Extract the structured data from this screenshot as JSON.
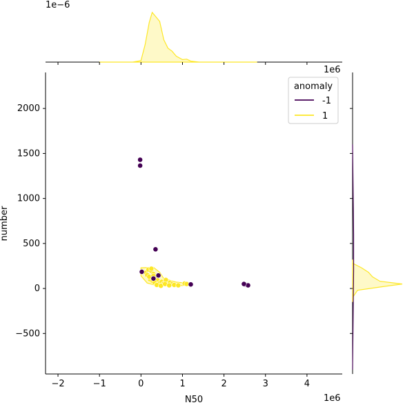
{
  "chart_data": {
    "type": "scatter",
    "xlabel": "N50",
    "ylabel": "number",
    "x_offset_label": "1e6",
    "y_offset_label_main": "",
    "top_marginal_offset_label": "1e−6",
    "right_marginal_offset_label": "1e6",
    "xlim": [
      -2.3,
      4.85
    ],
    "ylim": [
      -950,
      2400
    ],
    "xticks": [
      -2,
      -1,
      0,
      1,
      2,
      3,
      4
    ],
    "yticks": [
      -500,
      0,
      500,
      1000,
      1500,
      2000
    ],
    "xtick_labels": [
      "−2",
      "−1",
      "0",
      "1",
      "2",
      "3",
      "4"
    ],
    "ytick_labels": [
      "−500",
      "0",
      "500",
      "1000",
      "1500",
      "2000"
    ],
    "legend": {
      "title": "anomaly",
      "placement": "top-right",
      "entries": [
        {
          "label": "-1",
          "color": "#440154"
        },
        {
          "label": "1",
          "color": "#fde725"
        }
      ]
    },
    "series": [
      {
        "name": "-1",
        "color": "#440154",
        "x": [
          -0.02,
          -0.02,
          0.35,
          0.02,
          0.42,
          1.2,
          2.5,
          2.58,
          2.48,
          0.3
        ],
        "y": [
          1430,
          1365,
          435,
          185,
          145,
          45,
          45,
          35,
          50,
          110
        ]
      },
      {
        "name": "1",
        "color": "#fde725",
        "x": [
          0.12,
          0.18,
          0.25,
          0.3,
          0.35,
          0.22,
          0.15,
          0.28,
          0.4,
          0.45,
          0.5,
          0.55,
          0.6,
          0.65,
          0.7,
          0.75,
          0.8,
          0.9,
          1.05,
          1.1,
          0.2,
          0.32,
          0.38,
          0.48,
          0.58,
          0.68,
          0.25,
          0.3
        ],
        "y": [
          175,
          210,
          195,
          160,
          120,
          100,
          150,
          80,
          90,
          60,
          75,
          55,
          95,
          45,
          65,
          50,
          40,
          35,
          55,
          50,
          130,
          70,
          40,
          30,
          50,
          35,
          220,
          140
        ]
      }
    ]
  }
}
